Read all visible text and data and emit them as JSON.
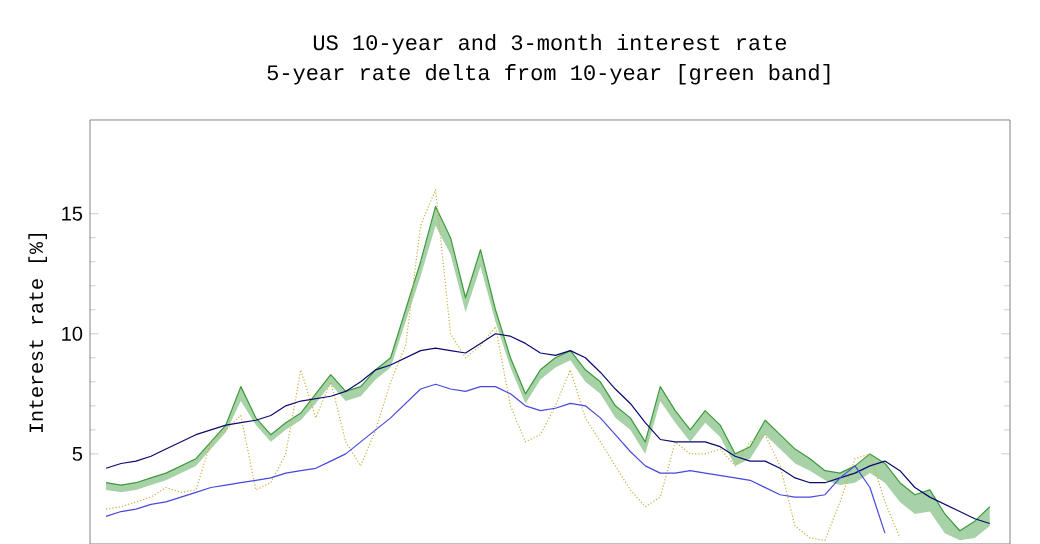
{
  "chart_data": {
    "type": "line",
    "title": "US 10-year and 3-month interest rate",
    "subtitle": "5-year rate delta from 10-year [green band]",
    "ylabel": "Interest rate [%]",
    "categories": [
      null,
      null,
      null,
      null,
      null,
      null,
      null,
      null,
      null,
      null,
      null,
      null,
      null,
      null,
      null,
      null,
      null,
      null,
      null,
      null,
      null,
      null,
      null,
      null,
      null,
      null,
      null,
      null,
      null,
      null,
      null,
      null,
      null,
      null,
      null,
      null,
      null,
      null,
      null,
      null,
      null,
      null,
      null,
      null,
      null,
      null,
      null,
      null,
      null,
      null,
      null,
      null,
      null,
      null,
      null,
      null,
      null,
      null,
      null,
      null
    ],
    "ylim": [
      1.25,
      18.9
    ],
    "yticks": [
      5,
      10,
      15
    ],
    "series": [
      {
        "color": "#3c9a3c",
        "line_style": "solid",
        "values": [
          3.8,
          3.7,
          3.8,
          4.0,
          4.2,
          4.5,
          4.8,
          5.5,
          6.2,
          7.8,
          6.5,
          5.8,
          6.3,
          6.7,
          7.5,
          8.3,
          7.6,
          7.8,
          8.5,
          9.0,
          11.0,
          13.0,
          15.3,
          14.0,
          11.5,
          13.5,
          11.0,
          9.0,
          7.5,
          8.5,
          9.0,
          9.3,
          8.5,
          8.0,
          7.0,
          6.5,
          5.5,
          7.8,
          6.8,
          6.0,
          6.8,
          6.2,
          5.0,
          5.3,
          6.4,
          5.8,
          5.2,
          4.8,
          4.3,
          4.2,
          4.5,
          5.0,
          4.6,
          3.8,
          3.3,
          3.5,
          2.5,
          1.8,
          2.2,
          2.8
        ],
        "lower": [
          3.5,
          3.4,
          3.5,
          3.7,
          3.9,
          4.2,
          4.5,
          5.2,
          5.9,
          7.2,
          6.2,
          5.5,
          6.0,
          6.4,
          7.1,
          7.9,
          7.2,
          7.4,
          8.1,
          8.6,
          10.5,
          12.4,
          14.5,
          13.3,
          10.9,
          12.8,
          10.5,
          8.6,
          7.1,
          8.1,
          8.6,
          8.9,
          8.0,
          7.5,
          6.5,
          6.0,
          5.0,
          7.2,
          6.3,
          5.5,
          6.3,
          5.7,
          4.5,
          4.8,
          5.8,
          5.2,
          4.6,
          4.3,
          3.9,
          3.7,
          3.8,
          4.2,
          3.8,
          3.0,
          2.5,
          2.6,
          1.7,
          1.4,
          1.5,
          2.0
        ],
        "upper": [
          3.8,
          3.7,
          3.8,
          4.0,
          4.2,
          4.5,
          4.8,
          5.5,
          6.2,
          7.8,
          6.5,
          5.8,
          6.3,
          6.7,
          7.5,
          8.3,
          7.6,
          7.8,
          8.5,
          9.0,
          11.0,
          13.0,
          15.3,
          14.0,
          11.5,
          13.5,
          11.0,
          9.0,
          7.5,
          8.5,
          9.0,
          9.3,
          8.5,
          8.0,
          7.0,
          6.5,
          5.5,
          7.8,
          6.8,
          6.0,
          6.8,
          6.2,
          5.0,
          5.3,
          6.4,
          5.8,
          5.2,
          4.8,
          4.3,
          4.2,
          4.5,
          5.0,
          4.6,
          3.8,
          3.3,
          3.5,
          2.5,
          1.8,
          2.2,
          2.8
        ]
      },
      {
        "color": "#c8b040",
        "line_style": "dotted",
        "values": [
          2.7,
          2.8,
          3.0,
          3.2,
          3.6,
          3.4,
          3.5,
          5.5,
          6.0,
          6.6,
          3.5,
          3.8,
          5.0,
          8.5,
          6.5,
          8.0,
          5.5,
          4.5,
          6.0,
          8.0,
          9.5,
          14.5,
          16.0,
          10.0,
          9.0,
          9.5,
          10.3,
          7.0,
          5.5,
          5.8,
          7.0,
          8.5,
          6.5,
          5.5,
          4.5,
          3.5,
          2.8,
          3.2,
          5.5,
          5.0,
          5.0,
          5.2,
          4.5,
          5.5,
          5.8,
          4.5,
          2.0,
          1.5,
          1.4,
          3.0,
          4.8,
          5.0,
          3.0,
          1.5,
          null,
          null,
          null,
          null,
          null,
          null
        ]
      },
      {
        "color": "#0a0a6e",
        "line_style": "solid",
        "values": [
          4.4,
          4.6,
          4.7,
          4.9,
          5.2,
          5.5,
          5.8,
          6.0,
          6.2,
          6.3,
          6.4,
          6.6,
          7.0,
          7.2,
          7.3,
          7.4,
          7.6,
          8.0,
          8.5,
          8.7,
          9.0,
          9.3,
          9.4,
          9.3,
          9.2,
          9.6,
          10.0,
          9.9,
          9.6,
          9.2,
          9.1,
          9.3,
          9.0,
          8.4,
          7.7,
          7.1,
          6.3,
          5.6,
          5.5,
          5.5,
          5.5,
          5.3,
          4.9,
          4.7,
          4.7,
          4.4,
          4.0,
          3.8,
          3.8,
          4.0,
          4.2,
          4.5,
          4.7,
          4.3,
          3.6,
          3.2,
          2.9,
          2.6,
          2.3,
          2.1
        ]
      },
      {
        "color": "#4848dc",
        "line_style": "solid",
        "values": [
          2.4,
          2.6,
          2.7,
          2.9,
          3.0,
          3.2,
          3.4,
          3.6,
          3.7,
          3.8,
          3.9,
          4.0,
          4.2,
          4.3,
          4.4,
          4.7,
          5.0,
          5.5,
          6.0,
          6.5,
          7.1,
          7.7,
          7.9,
          7.7,
          7.6,
          7.8,
          7.8,
          7.5,
          7.0,
          6.8,
          6.9,
          7.1,
          7.0,
          6.5,
          5.8,
          5.1,
          4.5,
          4.2,
          4.2,
          4.3,
          4.2,
          4.1,
          4.0,
          3.9,
          3.6,
          3.3,
          3.2,
          3.2,
          3.3,
          4.0,
          4.5,
          3.6,
          1.7,
          null,
          null,
          null,
          null,
          null,
          null,
          null
        ]
      }
    ]
  }
}
